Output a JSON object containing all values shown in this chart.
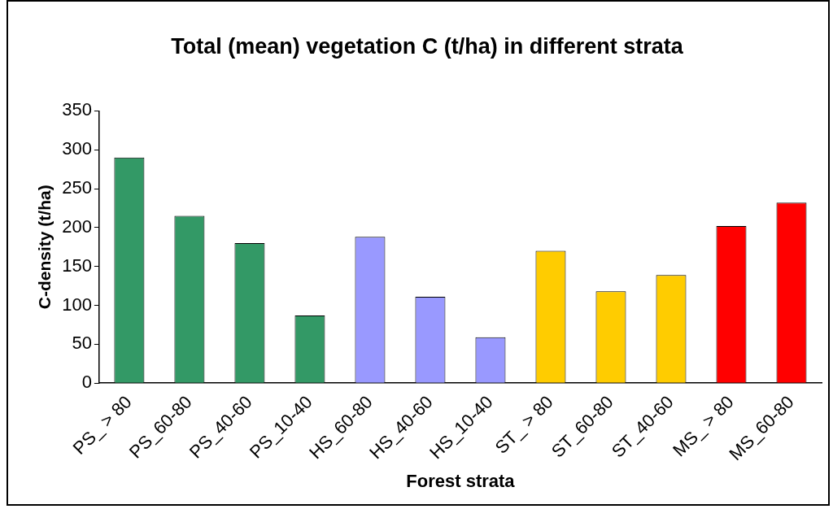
{
  "chart_data": {
    "type": "bar",
    "title": "Total (mean) vegetation C (t/ha) in different strata",
    "xlabel": "Forest strata",
    "ylabel": "C-density (t/ha)",
    "categories": [
      "PS_ > 80",
      "PS_60-80",
      "PS_40-60",
      "PS_10-40",
      "HS_60-80",
      "HS_40-60",
      "HS_10-40",
      "ST_ > 80",
      "ST_60-80",
      "ST_40-60",
      "MS_ > 80",
      "MS_60-80"
    ],
    "values": [
      290,
      215,
      180,
      87,
      188,
      111,
      59,
      170,
      118,
      139,
      202,
      232
    ],
    "colors": [
      "#339966",
      "#339966",
      "#339966",
      "#339966",
      "#9999ff",
      "#9999ff",
      "#9999ff",
      "#ffcc00",
      "#ffcc00",
      "#ffcc00",
      "#ff0000",
      "#ff0000"
    ],
    "ylim": [
      0,
      350
    ],
    "yticks": [
      0,
      50,
      100,
      150,
      200,
      250,
      300,
      350
    ],
    "grid": false,
    "legend": false
  }
}
